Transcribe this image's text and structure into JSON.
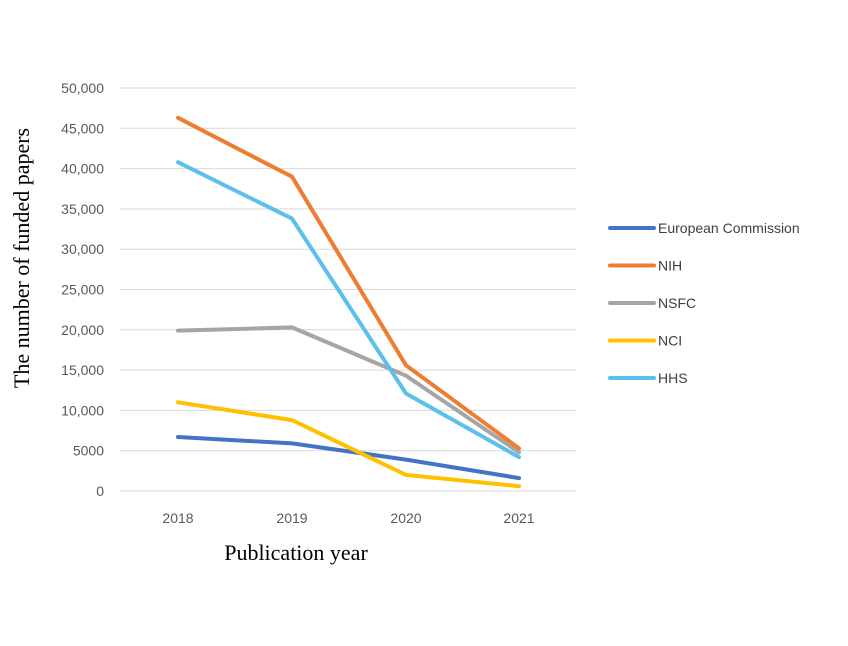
{
  "chart_data": {
    "type": "line",
    "title": "",
    "xlabel": "Publication year",
    "ylabel": "The number of funded papers",
    "categories": [
      "2018",
      "2019",
      "2020",
      "2021"
    ],
    "ylim": [
      0,
      50000
    ],
    "yticks": [
      0,
      5000,
      10000,
      15000,
      20000,
      25000,
      30000,
      35000,
      40000,
      45000,
      50000
    ],
    "ytick_labels": [
      "0",
      "5000",
      "10,000",
      "15,000",
      "20,000",
      "25,000",
      "30,000",
      "35,000",
      "40,000",
      "45,000",
      "50,000"
    ],
    "grid": true,
    "legend_position": "right",
    "series": [
      {
        "name": "European Commission",
        "color": "#4472c4",
        "values": [
          6700,
          5900,
          3900,
          1600
        ]
      },
      {
        "name": "NIH",
        "color": "#ed7d31",
        "values": [
          46300,
          39000,
          15600,
          5300
        ]
      },
      {
        "name": "NSFC",
        "color": "#a5a5a5",
        "values": [
          19900,
          20300,
          14300,
          4800
        ]
      },
      {
        "name": "NCI",
        "color": "#ffc000",
        "values": [
          11000,
          8800,
          2000,
          600
        ]
      },
      {
        "name": "HHS",
        "color": "#5bc0eb",
        "values": [
          40800,
          33800,
          12100,
          4200
        ]
      }
    ]
  }
}
